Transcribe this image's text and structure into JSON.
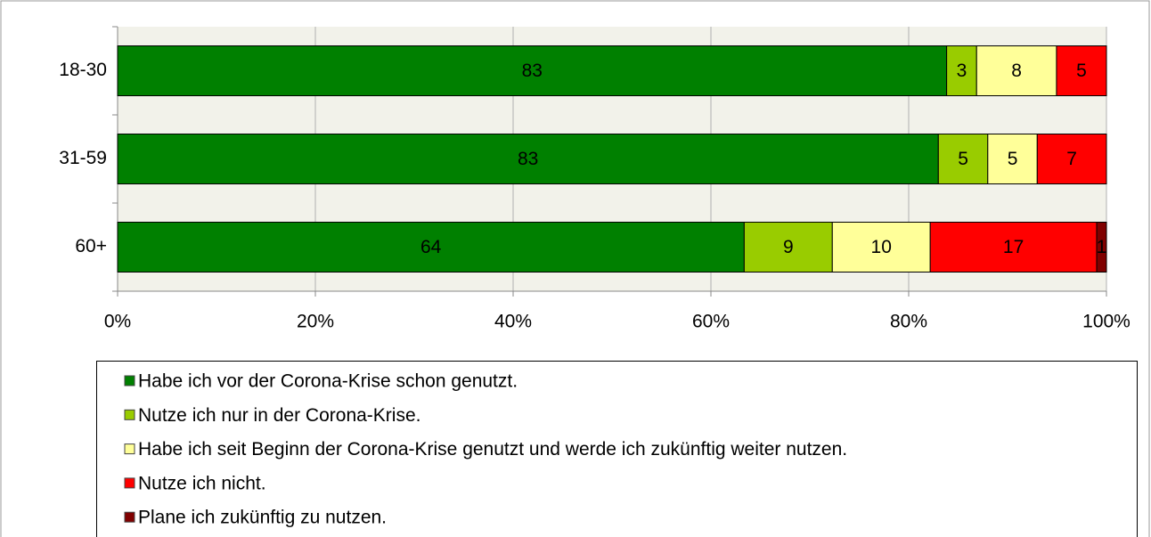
{
  "chart_data": {
    "type": "bar",
    "orientation": "horizontal",
    "stacked": "percent",
    "categories": [
      "18-30",
      "31-59",
      "60+"
    ],
    "series": [
      {
        "name": "Habe ich vor der Corona-Krise schon genutzt.",
        "color": "#008000",
        "values": [
          83,
          83,
          64
        ]
      },
      {
        "name": "Nutze ich nur in der Corona-Krise.",
        "color": "#99cc00",
        "values": [
          3,
          5,
          9
        ]
      },
      {
        "name": "Habe ich seit Beginn der Corona-Krise genutzt und werde ich zukünftig weiter nutzen.",
        "color": "#ffff99",
        "values": [
          8,
          5,
          10
        ]
      },
      {
        "name": "Nutze ich nicht.",
        "color": "#ff0000",
        "values": [
          5,
          7,
          17
        ]
      },
      {
        "name": "Plane ich zukünftig zu nutzen.",
        "color": "#800000",
        "values": [
          null,
          null,
          1
        ]
      }
    ],
    "xlim": [
      0,
      100
    ],
    "xticks": [
      {
        "value": 0,
        "label": "0%"
      },
      {
        "value": 20,
        "label": "20%"
      },
      {
        "value": 40,
        "label": "40%"
      },
      {
        "value": 60,
        "label": "60%"
      },
      {
        "value": 80,
        "label": "80%"
      },
      {
        "value": 100,
        "label": "100%"
      }
    ],
    "grid": true,
    "legend": "bottom"
  }
}
